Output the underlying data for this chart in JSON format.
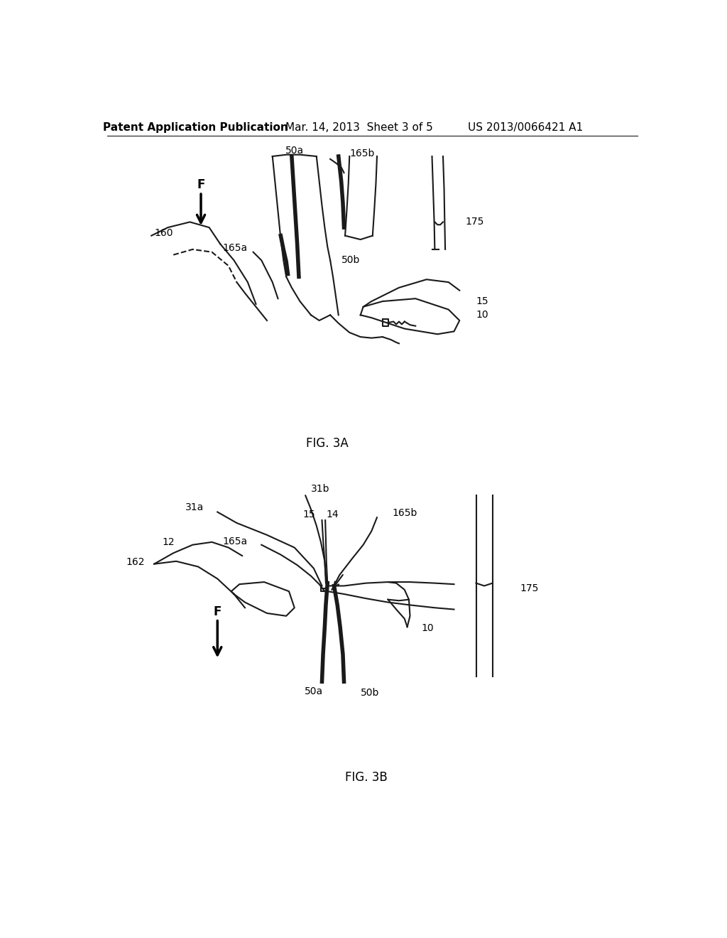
{
  "bg_color": "#ffffff",
  "lc": "#1a1a1a",
  "lw": 1.5,
  "tlw": 4.0,
  "header_left": "Patent Application Publication",
  "header_center": "Mar. 14, 2013  Sheet 3 of 5",
  "header_right": "US 2013/0066421 A1",
  "fig3a_label": "FIG. 3A",
  "fig3b_label": "FIG. 3B"
}
